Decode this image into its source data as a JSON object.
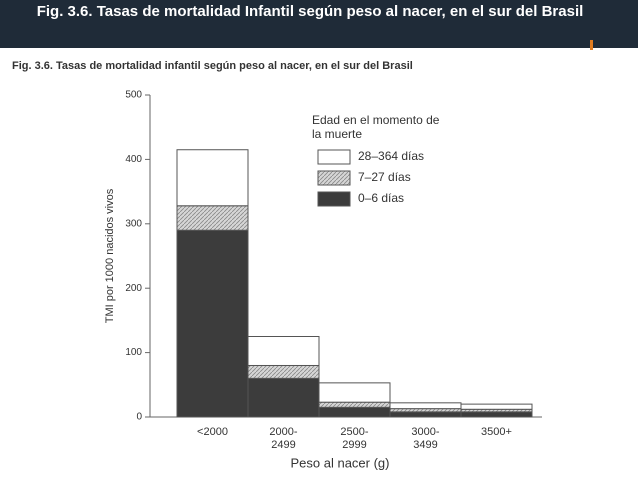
{
  "chart_data": {
    "type": "bar",
    "stacked": true,
    "title": "Fig. 3.6. Tasas de mortalidad Infantil según peso al nacer, en el sur del Brasil",
    "subtitle": "Fig. 3.6. Tasas de mortalidad infantil según peso al nacer, en el sur del Brasil",
    "x_label": "Peso al nacer (g)",
    "y_label": "TMI por 1000 nacidos vivos",
    "legend_title": "Edad en el momento de la muerte",
    "categories": [
      "<2000",
      "2000-2499",
      "2500-2999",
      "3000-3499",
      "3500+"
    ],
    "series": [
      {
        "name": "0–6 días",
        "color": "#3c3c3c",
        "values": [
          290,
          60,
          15,
          8,
          8
        ]
      },
      {
        "name": "7–27 días",
        "color": "#c4c4c4",
        "values": [
          38,
          20,
          8,
          5,
          4
        ]
      },
      {
        "name": "28–364 días",
        "color": "#ffffff",
        "values": [
          87,
          45,
          30,
          9,
          8
        ]
      }
    ],
    "ylim": [
      0,
      500
    ],
    "yticks": [
      0,
      100,
      200,
      300,
      400,
      500
    ],
    "grid": false
  }
}
